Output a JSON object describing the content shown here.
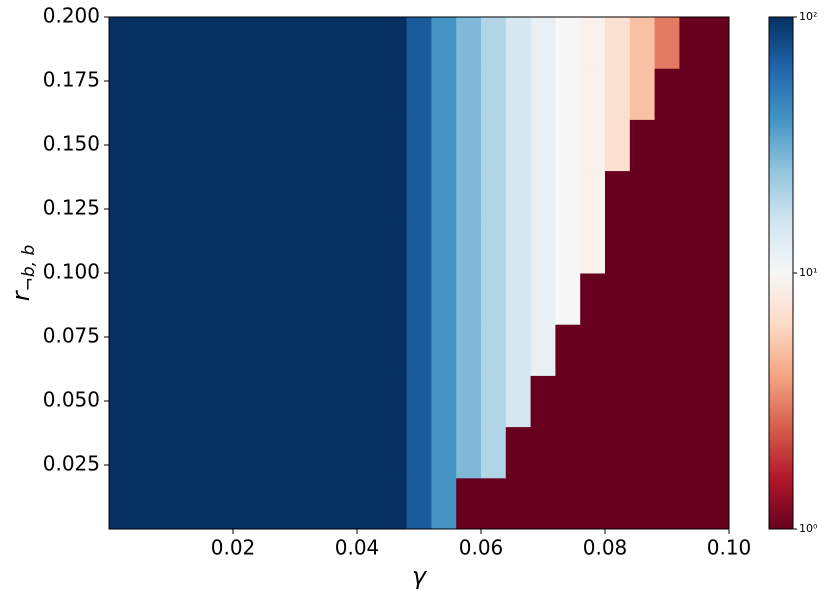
{
  "chart_data": {
    "type": "heatmap",
    "xlabel": "γ",
    "ylabel": {
      "base": "r",
      "sub": "¬b, b"
    },
    "colormap": "RdBu",
    "color_scale": "log",
    "x_edges": [
      0,
      0.004,
      0.008,
      0.012,
      0.016,
      0.02,
      0.024,
      0.028,
      0.032,
      0.036,
      0.04,
      0.044,
      0.048,
      0.052,
      0.056,
      0.06,
      0.064,
      0.068,
      0.072,
      0.076,
      0.08,
      0.084,
      0.088,
      0.092,
      0.096,
      0.1
    ],
    "y_edges": [
      0,
      0.02,
      0.04,
      0.06,
      0.08,
      0.1,
      0.12,
      0.14,
      0.16,
      0.18,
      0.2
    ],
    "z": [
      [
        100,
        100,
        100,
        100,
        100,
        100,
        100,
        100,
        100,
        100,
        100,
        100,
        70,
        40,
        1,
        1,
        1,
        1,
        1,
        1,
        1,
        1,
        1,
        1,
        1
      ],
      [
        100,
        100,
        100,
        100,
        100,
        100,
        100,
        100,
        100,
        100,
        100,
        100,
        70,
        40,
        28,
        20,
        1,
        1,
        1,
        1,
        1,
        1,
        1,
        1,
        1
      ],
      [
        100,
        100,
        100,
        100,
        100,
        100,
        100,
        100,
        100,
        100,
        100,
        100,
        70,
        40,
        28,
        20,
        15,
        1,
        1,
        1,
        1,
        1,
        1,
        1,
        1
      ],
      [
        100,
        100,
        100,
        100,
        100,
        100,
        100,
        100,
        100,
        100,
        100,
        100,
        70,
        40,
        28,
        20,
        15,
        12,
        1,
        1,
        1,
        1,
        1,
        1,
        1
      ],
      [
        100,
        100,
        100,
        100,
        100,
        100,
        100,
        100,
        100,
        100,
        100,
        100,
        70,
        40,
        28,
        20,
        15,
        12,
        10,
        1,
        1,
        1,
        1,
        1,
        1
      ],
      [
        100,
        100,
        100,
        100,
        100,
        100,
        100,
        100,
        100,
        100,
        100,
        100,
        70,
        40,
        28,
        20,
        15,
        12,
        10,
        9,
        1,
        1,
        1,
        1,
        1
      ],
      [
        100,
        100,
        100,
        100,
        100,
        100,
        100,
        100,
        100,
        100,
        100,
        100,
        70,
        40,
        28,
        20,
        15,
        12,
        10,
        9,
        1,
        1,
        1,
        1,
        1
      ],
      [
        100,
        100,
        100,
        100,
        100,
        100,
        100,
        100,
        100,
        100,
        100,
        100,
        70,
        40,
        28,
        20,
        15,
        12,
        10,
        9,
        7,
        1,
        1,
        1,
        1
      ],
      [
        100,
        100,
        100,
        100,
        100,
        100,
        100,
        100,
        100,
        100,
        100,
        100,
        70,
        40,
        28,
        20,
        15,
        12,
        10,
        9,
        7,
        5,
        1,
        1,
        1
      ],
      [
        100,
        100,
        100,
        100,
        100,
        100,
        100,
        100,
        100,
        100,
        100,
        100,
        70,
        40,
        28,
        20,
        15,
        12,
        10,
        9,
        7,
        5,
        3,
        1,
        1
      ]
    ],
    "xlim": [
      0,
      0.1
    ],
    "ylim": [
      0,
      0.2
    ],
    "xticks": [
      0.02,
      0.04,
      0.06,
      0.08,
      {
        "value": 0.1,
        "label": "0.10"
      }
    ],
    "yticks": [
      0.025,
      {
        "value": 0.05,
        "label": "0.050"
      },
      0.075,
      {
        "value": 0.1,
        "label": "0.100"
      },
      0.125,
      {
        "value": 0.15,
        "label": "0.150"
      },
      0.175,
      {
        "value": 0.2,
        "label": "0.200"
      }
    ],
    "clim": [
      1,
      100
    ],
    "cticks": [
      {
        "value": 1,
        "label": "10⁰"
      },
      {
        "value": 10,
        "label": "10¹"
      },
      {
        "value": 100,
        "label": "10²"
      }
    ]
  }
}
